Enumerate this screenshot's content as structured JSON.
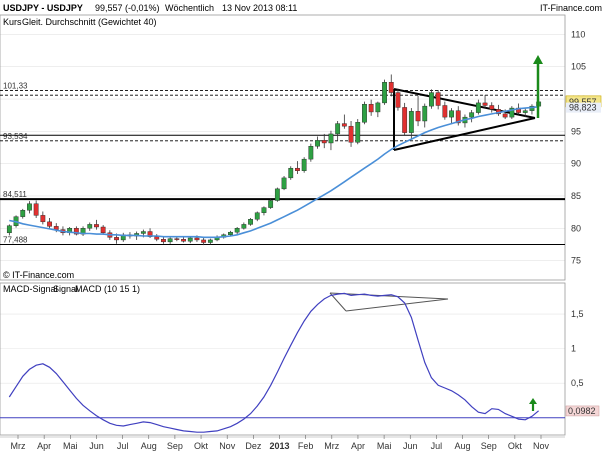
{
  "header": {
    "symbol": "USDJPY - USDJPY",
    "last": "99,557 (-0,01%)",
    "period": "Wöchentlich",
    "datetime": "13 Nov 2013 08:11",
    "brand": "IT-Finance.com",
    "copyright": "© IT-Finance.com"
  },
  "legend": {
    "kurs": "Kurs",
    "ma": "Gleit. Durchschnitt (Gewichtet 40)"
  },
  "macd_legend": {
    "signal_a": "MACD-Signal",
    "signal_b": "Signal",
    "macd": "MACD (10 15 1)"
  },
  "colors": {
    "up": "#2ea043",
    "down": "#e03030",
    "ma": "#4a8fd8",
    "macd": "#4040c0",
    "arrow": "#1a8a1a",
    "tag_bg": "#f3e58a"
  },
  "chart_data": [
    {
      "type": "candlestick",
      "title": "USDJPY - USDJPY",
      "ylim": [
        72,
        113
      ],
      "yticks": [
        "75",
        "80",
        "85",
        "90",
        "95",
        "100",
        "105",
        "110"
      ],
      "last_value_tag": "99,557",
      "ma_tag": "98,823",
      "levels": [
        {
          "value": 101.33,
          "label": "101,33",
          "style": "dashed"
        },
        {
          "value": 93.534,
          "label": "93,534",
          "style": "dashed"
        },
        {
          "value": 84.511,
          "label": "84,511",
          "style": "solid-bold"
        },
        {
          "value": 77.488,
          "label": "77,488",
          "style": "solid"
        },
        {
          "value": 100.6,
          "label": "",
          "style": "dashed"
        },
        {
          "value": 94.4,
          "label": "",
          "style": "solid"
        }
      ],
      "candles": [
        [
          79.3,
          80.6,
          78.9,
          80.4
        ],
        [
          80.4,
          82.0,
          80.1,
          81.8
        ],
        [
          81.8,
          83.0,
          81.5,
          82.8
        ],
        [
          82.8,
          84.2,
          82.3,
          83.8
        ],
        [
          83.8,
          84.3,
          81.6,
          82.0
        ],
        [
          82.0,
          82.6,
          80.6,
          81.0
        ],
        [
          81.0,
          81.6,
          79.9,
          80.3
        ],
        [
          80.3,
          80.8,
          79.4,
          79.8
        ],
        [
          79.8,
          80.3,
          78.9,
          79.3
        ],
        [
          79.3,
          80.2,
          78.9,
          80.0
        ],
        [
          80.0,
          80.3,
          78.9,
          79.1
        ],
        [
          79.1,
          80.3,
          78.8,
          80.0
        ],
        [
          80.0,
          80.9,
          79.6,
          80.6
        ],
        [
          80.6,
          81.3,
          79.8,
          80.2
        ],
        [
          80.2,
          80.5,
          79.0,
          79.3
        ],
        [
          79.3,
          79.7,
          78.2,
          78.6
        ],
        [
          78.6,
          79.2,
          77.6,
          78.2
        ],
        [
          78.2,
          79.3,
          77.9,
          79.0
        ],
        [
          79.0,
          79.4,
          78.4,
          78.8
        ],
        [
          78.8,
          79.5,
          78.2,
          79.2
        ],
        [
          79.2,
          79.8,
          78.6,
          79.5
        ],
        [
          79.5,
          80.0,
          78.5,
          78.7
        ],
        [
          78.7,
          79.1,
          78.0,
          78.3
        ],
        [
          78.3,
          78.7,
          77.6,
          77.9
        ],
        [
          77.9,
          78.6,
          77.6,
          78.4
        ],
        [
          78.4,
          78.7,
          78.0,
          78.3
        ],
        [
          78.3,
          78.7,
          77.8,
          78.0
        ],
        [
          78.0,
          78.8,
          77.7,
          78.5
        ],
        [
          78.5,
          78.9,
          77.9,
          78.2
        ],
        [
          78.2,
          78.5,
          77.4,
          77.8
        ],
        [
          77.8,
          78.4,
          77.5,
          78.2
        ],
        [
          78.2,
          78.9,
          78.0,
          78.6
        ],
        [
          78.6,
          79.2,
          78.4,
          79.0
        ],
        [
          79.0,
          79.6,
          78.8,
          79.4
        ],
        [
          79.4,
          80.2,
          79.1,
          80.0
        ],
        [
          80.0,
          80.9,
          79.8,
          80.6
        ],
        [
          80.6,
          81.6,
          80.4,
          81.4
        ],
        [
          81.4,
          82.6,
          81.1,
          82.4
        ],
        [
          82.4,
          83.4,
          82.0,
          83.2
        ],
        [
          83.2,
          84.5,
          83.0,
          84.3
        ],
        [
          84.3,
          86.3,
          84.1,
          86.1
        ],
        [
          86.1,
          88.1,
          85.9,
          87.8
        ],
        [
          87.8,
          89.6,
          87.5,
          89.3
        ],
        [
          89.3,
          90.4,
          88.4,
          88.9
        ],
        [
          88.9,
          91.0,
          88.6,
          90.7
        ],
        [
          90.7,
          93.1,
          90.3,
          92.7
        ],
        [
          92.7,
          94.2,
          92.3,
          93.6
        ],
        [
          93.6,
          94.6,
          92.4,
          93.2
        ],
        [
          93.2,
          95.1,
          92.1,
          94.6
        ],
        [
          94.6,
          96.6,
          93.6,
          96.2
        ],
        [
          96.2,
          97.6,
          95.4,
          95.8
        ],
        [
          95.8,
          96.6,
          92.6,
          93.3
        ],
        [
          93.3,
          96.9,
          93.0,
          96.4
        ],
        [
          96.4,
          99.6,
          96.1,
          99.2
        ],
        [
          99.2,
          99.9,
          97.4,
          98.0
        ],
        [
          98.0,
          99.6,
          97.2,
          99.4
        ],
        [
          99.4,
          103.0,
          99.1,
          102.6
        ],
        [
          102.6,
          103.8,
          100.4,
          101.0
        ],
        [
          101.0,
          101.6,
          98.2,
          98.7
        ],
        [
          98.7,
          99.4,
          94.3,
          94.8
        ],
        [
          94.8,
          98.6,
          93.8,
          98.1
        ],
        [
          98.1,
          100.5,
          95.8,
          96.6
        ],
        [
          96.6,
          99.3,
          95.6,
          98.9
        ],
        [
          98.9,
          101.5,
          98.5,
          101.0
        ],
        [
          101.0,
          101.4,
          98.4,
          99.0
        ],
        [
          99.0,
          99.6,
          96.8,
          97.2
        ],
        [
          97.2,
          98.6,
          96.2,
          98.2
        ],
        [
          98.2,
          98.9,
          95.9,
          96.3
        ],
        [
          96.3,
          97.6,
          95.6,
          97.2
        ],
        [
          97.2,
          98.3,
          96.4,
          97.9
        ],
        [
          97.9,
          99.9,
          97.6,
          99.4
        ],
        [
          99.4,
          100.6,
          98.6,
          99.0
        ],
        [
          99.0,
          99.5,
          97.9,
          98.4
        ],
        [
          98.4,
          99.1,
          97.4,
          97.7
        ],
        [
          97.7,
          98.4,
          96.9,
          97.2
        ],
        [
          97.2,
          98.9,
          96.9,
          98.6
        ],
        [
          98.6,
          99.3,
          97.6,
          97.9
        ],
        [
          97.9,
          98.6,
          97.2,
          98.2
        ],
        [
          98.2,
          99.2,
          97.6,
          98.9
        ],
        [
          98.9,
          99.8,
          98.5,
          99.56
        ]
      ],
      "ma": [
        81.2,
        81.0,
        80.7,
        80.5,
        80.3,
        80.1,
        79.9,
        79.7,
        79.5,
        79.4,
        79.3,
        79.2,
        79.2,
        79.1,
        79.1,
        79.0,
        79.0,
        78.9,
        78.9,
        78.9,
        78.8,
        78.8,
        78.8,
        78.7,
        78.7,
        78.7,
        78.7,
        78.7,
        78.7,
        78.6,
        78.6,
        78.6,
        78.7,
        78.8,
        79.0,
        79.3,
        79.6,
        80.0,
        80.4,
        80.8,
        81.3,
        81.8,
        82.3,
        82.8,
        83.4,
        84.0,
        84.6,
        85.2,
        85.8,
        86.5,
        87.2,
        87.9,
        88.6,
        89.3,
        90.0,
        90.7,
        91.5,
        92.2,
        92.8,
        93.3,
        93.8,
        94.3,
        94.8,
        95.2,
        95.6,
        95.9,
        96.2,
        96.5,
        96.8,
        97.0,
        97.3,
        97.5,
        97.7,
        97.9,
        98.1,
        98.3,
        98.5,
        98.6,
        98.7,
        98.8
      ]
    },
    {
      "type": "line",
      "title": "MACD (10 15 1)",
      "ylim": [
        -0.25,
        1.95
      ],
      "yticks": [
        "0,5",
        "1",
        "1,5"
      ],
      "last_value_tag": "0,0982",
      "macd": [
        0.3,
        0.45,
        0.6,
        0.7,
        0.76,
        0.78,
        0.73,
        0.64,
        0.52,
        0.4,
        0.28,
        0.18,
        0.1,
        0.03,
        -0.03,
        -0.08,
        -0.11,
        -0.12,
        -0.1,
        -0.08,
        -0.06,
        -0.07,
        -0.1,
        -0.13,
        -0.15,
        -0.17,
        -0.19,
        -0.2,
        -0.21,
        -0.21,
        -0.2,
        -0.19,
        -0.16,
        -0.13,
        -0.08,
        -0.02,
        0.06,
        0.17,
        0.3,
        0.47,
        0.66,
        0.86,
        1.05,
        1.23,
        1.4,
        1.54,
        1.64,
        1.72,
        1.77,
        1.79,
        1.8,
        1.77,
        1.78,
        1.79,
        1.77,
        1.76,
        1.77,
        1.78,
        1.75,
        1.66,
        1.45,
        1.12,
        0.8,
        0.58,
        0.47,
        0.43,
        0.39,
        0.33,
        0.26,
        0.16,
        0.08,
        0.06,
        0.13,
        0.12,
        0.06,
        0.02,
        -0.02,
        -0.03,
        0.02,
        0.1
      ]
    }
  ],
  "x_axis": {
    "labels": [
      "Mrz",
      "Apr",
      "Mai",
      "Jun",
      "Jul",
      "Aug",
      "Sep",
      "Okt",
      "Nov",
      "Dez",
      "2013",
      "Feb",
      "Mrz",
      "Apr",
      "Mai",
      "Jun",
      "Jul",
      "Aug",
      "Sep",
      "Okt",
      "Nov"
    ],
    "bold_label": "2013"
  }
}
